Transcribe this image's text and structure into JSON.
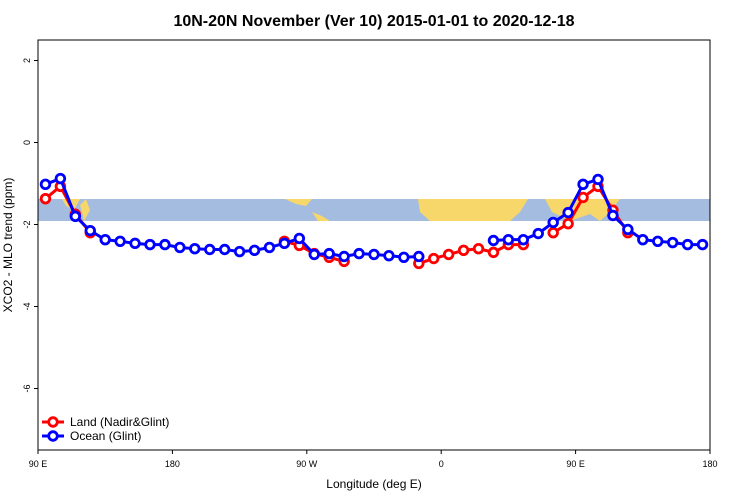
{
  "chart_data": {
    "type": "line",
    "title": "10N-20N November (Ver 10)   2015-01-01 to 2020-12-18",
    "x_label": "Longitude (deg E)",
    "y_label": "XCO2 - MLO trend (ppm)",
    "x": [
      95,
      105,
      115,
      125,
      135,
      145,
      155,
      165,
      175,
      185,
      195,
      205,
      215,
      225,
      235,
      245,
      255,
      265,
      275,
      285,
      295,
      305,
      315,
      325,
      335,
      345,
      355,
      365,
      375,
      385,
      395,
      405,
      415,
      425,
      435,
      445,
      455,
      465,
      475,
      485,
      495,
      505,
      515,
      525,
      535
    ],
    "xlim": [
      90,
      540
    ],
    "xticks": [
      {
        "value": 90,
        "label": "90 E"
      },
      180,
      {
        "value": 270,
        "label": "90 W"
      },
      {
        "value": 360,
        "label": "0"
      },
      {
        "value": 450,
        "label": "90 E"
      },
      {
        "value": 540,
        "label": "180"
      }
    ],
    "ylim": [
      -7.5,
      2.5
    ],
    "yticks": [
      2,
      0,
      -2,
      -4,
      -6
    ],
    "legend": "bottom-left",
    "series": [
      {
        "name": "Land (Nadir&Glint)",
        "color": "#ff0000",
        "values": [
          -1.37,
          -1.07,
          -1.75,
          -2.2,
          null,
          null,
          null,
          null,
          null,
          null,
          null,
          null,
          null,
          null,
          null,
          null,
          -2.41,
          -2.51,
          -2.71,
          -2.8,
          -2.9,
          null,
          null,
          null,
          null,
          -2.95,
          -2.83,
          -2.73,
          -2.63,
          -2.59,
          -2.68,
          -2.49,
          -2.49,
          null,
          -2.2,
          -1.98,
          -1.34,
          -1.07,
          -1.65,
          -2.2,
          null,
          null,
          null,
          null,
          null
        ]
      },
      {
        "name": "Ocean (Glint)",
        "color": "#0000ff",
        "values": [
          -1.02,
          -0.88,
          -1.8,
          -2.15,
          -2.37,
          -2.41,
          -2.46,
          -2.49,
          -2.49,
          -2.56,
          -2.59,
          -2.61,
          -2.61,
          -2.66,
          -2.63,
          -2.56,
          -2.46,
          -2.34,
          -2.73,
          -2.71,
          -2.78,
          -2.71,
          -2.73,
          -2.76,
          -2.8,
          -2.78,
          null,
          null,
          null,
          null,
          -2.39,
          -2.37,
          -2.37,
          -2.22,
          -1.95,
          -1.71,
          -1.02,
          -0.9,
          -1.78,
          -2.12,
          -2.37,
          -2.41,
          -2.44,
          -2.49,
          -2.49
        ]
      }
    ]
  }
}
